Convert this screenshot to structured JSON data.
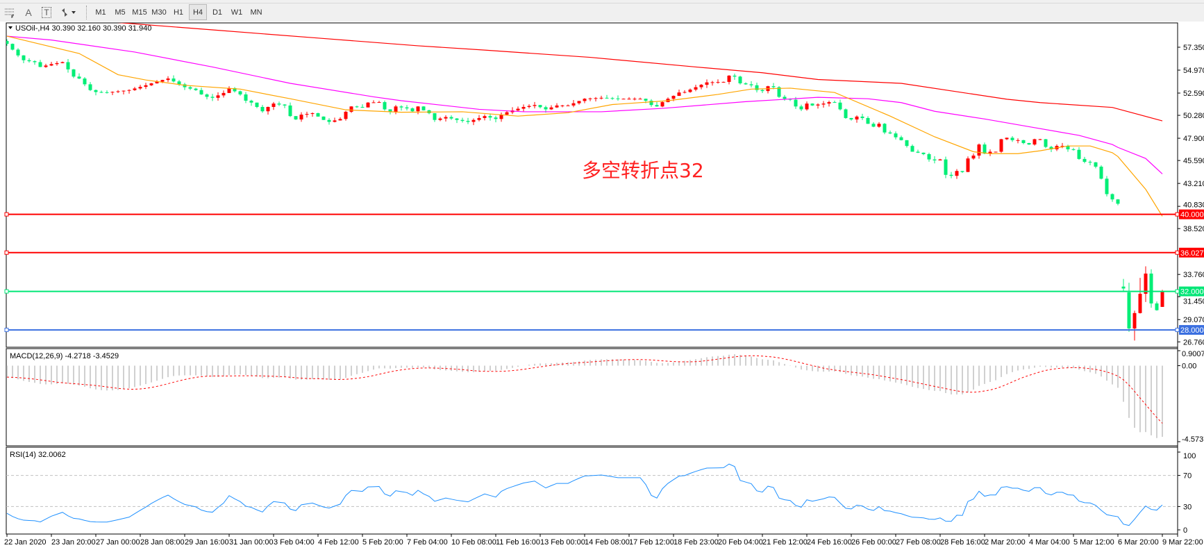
{
  "toolbar": {
    "drawing_tools": [
      {
        "icon": "fibonacci-icon"
      },
      {
        "icon": "text-icon",
        "label": "A"
      },
      {
        "icon": "text-label-icon",
        "label": "T"
      },
      {
        "icon": "arrows-icon"
      }
    ],
    "timeframes": [
      "M1",
      "M5",
      "M15",
      "M30",
      "H1",
      "H4",
      "D1",
      "W1",
      "MN"
    ],
    "active_timeframe": "H4"
  },
  "chart": {
    "header": "USOil-,H4  30.390 32.160 30.390 31.940",
    "symbol": "USOil-",
    "timeframe": "H4",
    "ohlc": {
      "open": 30.39,
      "high": 32.16,
      "low": 30.39,
      "close": 31.94
    },
    "annotation": "多空转折点32",
    "colors": {
      "bull": "#ff0000",
      "bear": "#00ee76",
      "ma_fast": "#ffa500",
      "ma_mid": "#ff00ff",
      "ma_slow": "#ff0000"
    },
    "price_axis": [
      "57.350",
      "54.970",
      "52.590",
      "50.280",
      "47.900",
      "45.590",
      "43.210",
      "40.830",
      "38.520",
      "33.760",
      "31.450",
      "29.070",
      "26.760"
    ],
    "price_range": [
      26.3,
      59.7
    ],
    "levels": [
      {
        "value": 40.0,
        "label": "40.000",
        "color": "#ff0000"
      },
      {
        "value": 36.027,
        "label": "36.027",
        "color": "#ff0000"
      },
      {
        "value": 32.0,
        "label": "32.000",
        "color": "#00e676"
      },
      {
        "value": 28.0,
        "label": "28.000",
        "color": "#3a6fe0"
      }
    ],
    "close_path": [
      [
        0,
        57.7
      ],
      [
        2,
        56.5
      ],
      [
        3,
        56.0
      ],
      [
        5,
        55.8
      ],
      [
        6,
        55.3
      ],
      [
        8,
        55.6
      ],
      [
        10,
        55.8
      ],
      [
        12,
        54.3
      ],
      [
        13,
        54.1
      ],
      [
        15,
        52.9
      ],
      [
        16,
        52.7
      ],
      [
        18,
        52.65
      ],
      [
        22,
        52.9
      ],
      [
        25,
        53.4
      ],
      [
        26,
        53.6
      ],
      [
        28,
        53.95
      ],
      [
        29,
        54.1
      ],
      [
        31,
        53.5
      ],
      [
        32,
        53.2
      ],
      [
        34,
        52.9
      ],
      [
        35,
        52.45
      ],
      [
        36,
        52.2
      ],
      [
        37,
        52.1
      ],
      [
        39,
        52.6
      ],
      [
        40,
        53.1
      ],
      [
        42,
        52.45
      ],
      [
        43,
        51.8
      ],
      [
        44,
        51.6
      ],
      [
        46,
        50.7
      ],
      [
        47,
        51.15
      ],
      [
        48,
        51.5
      ],
      [
        50,
        51.3
      ],
      [
        51,
        50.2
      ],
      [
        52,
        49.85
      ],
      [
        53,
        50.35
      ],
      [
        55,
        50.5
      ],
      [
        57,
        49.8
      ],
      [
        58,
        49.6
      ],
      [
        60,
        49.9
      ],
      [
        61,
        50.65
      ],
      [
        62,
        51.2
      ],
      [
        64,
        51.1
      ],
      [
        65,
        51.6
      ],
      [
        67,
        51.65
      ],
      [
        68,
        50.9
      ],
      [
        69,
        50.65
      ],
      [
        70,
        51.2
      ],
      [
        72,
        51.0
      ],
      [
        73,
        50.7
      ],
      [
        74,
        51.2
      ],
      [
        75,
        50.8
      ],
      [
        76,
        50.5
      ],
      [
        77,
        49.8
      ],
      [
        79,
        50.1
      ],
      [
        81,
        49.8
      ],
      [
        83,
        49.6
      ],
      [
        85,
        50.0
      ],
      [
        86,
        50.2
      ],
      [
        88,
        49.9
      ],
      [
        89,
        50.35
      ],
      [
        90,
        50.6
      ],
      [
        93,
        51.15
      ],
      [
        95,
        51.35
      ],
      [
        97,
        50.9
      ],
      [
        99,
        51.3
      ],
      [
        101,
        51.3
      ],
      [
        104,
        52.0
      ],
      [
        107,
        52.1
      ],
      [
        110,
        52.0
      ],
      [
        114,
        52.0
      ],
      [
        115,
        51.8
      ],
      [
        116,
        51.35
      ],
      [
        117,
        51.2
      ],
      [
        118,
        51.65
      ],
      [
        119,
        52.0
      ],
      [
        120,
        52.3
      ],
      [
        121,
        52.65
      ],
      [
        122,
        52.7
      ],
      [
        123,
        52.95
      ],
      [
        124,
        53.2
      ],
      [
        125,
        53.45
      ],
      [
        126,
        53.7
      ],
      [
        129,
        53.75
      ],
      [
        130,
        54.4
      ],
      [
        131,
        54.3
      ],
      [
        132,
        53.6
      ],
      [
        134,
        53.4
      ],
      [
        135,
        52.9
      ],
      [
        136,
        52.8
      ],
      [
        137,
        53.3
      ],
      [
        138,
        53.2
      ],
      [
        139,
        52.2
      ],
      [
        140,
        52.0
      ],
      [
        141,
        51.9
      ],
      [
        142,
        51.2
      ],
      [
        143,
        50.9
      ],
      [
        144,
        51.5
      ],
      [
        145,
        51.3
      ],
      [
        146,
        51.4
      ],
      [
        147,
        51.5
      ],
      [
        148,
        51.65
      ],
      [
        149,
        51.6
      ],
      [
        150,
        50.9
      ],
      [
        151,
        50.0
      ],
      [
        152,
        49.85
      ],
      [
        153,
        50.15
      ],
      [
        154,
        50.0
      ],
      [
        155,
        49.4
      ],
      [
        156,
        49.1
      ],
      [
        157,
        49.4
      ],
      [
        158,
        48.5
      ],
      [
        159,
        48.4
      ],
      [
        160,
        48.0
      ],
      [
        161,
        47.7
      ],
      [
        162,
        47.1
      ],
      [
        163,
        46.5
      ],
      [
        164,
        46.4
      ],
      [
        165,
        46.25
      ],
      [
        166,
        45.7
      ],
      [
        167,
        45.6
      ],
      [
        168,
        45.7
      ],
      [
        169,
        44.1
      ],
      [
        170,
        44.0
      ],
      [
        171,
        44.5
      ],
      [
        172,
        44.4
      ],
      [
        173,
        45.8
      ],
      [
        174,
        46.1
      ],
      [
        175,
        47.25
      ],
      [
        176,
        46.3
      ],
      [
        177,
        46.5
      ],
      [
        178,
        46.5
      ],
      [
        179,
        47.8
      ],
      [
        180,
        47.95
      ],
      [
        181,
        47.7
      ],
      [
        182,
        47.7
      ],
      [
        183,
        47.4
      ],
      [
        184,
        47.25
      ],
      [
        185,
        47.8
      ],
      [
        186,
        47.8
      ],
      [
        187,
        47.0
      ],
      [
        188,
        46.75
      ],
      [
        189,
        47.1
      ],
      [
        190,
        47.1
      ],
      [
        191,
        46.75
      ],
      [
        192,
        46.7
      ],
      [
        193,
        45.75
      ],
      [
        194,
        45.45
      ],
      [
        195,
        45.4
      ],
      [
        196,
        44.95
      ],
      [
        197,
        43.7
      ],
      [
        198,
        42.1
      ],
      [
        199,
        41.55
      ],
      [
        200,
        41.1
      ]
    ],
    "last_bars": [
      {
        "o": 32.5,
        "h": 33.3,
        "l": 32.0,
        "c": 32.3
      },
      {
        "o": 31.9,
        "h": 32.9,
        "l": 27.8,
        "c": 28.15
      },
      {
        "o": 28.15,
        "h": 30.0,
        "l": 26.9,
        "c": 29.75
      },
      {
        "o": 29.75,
        "h": 33.4,
        "l": 29.7,
        "c": 31.75
      },
      {
        "o": 31.75,
        "h": 34.6,
        "l": 30.9,
        "c": 33.85
      },
      {
        "o": 33.85,
        "h": 34.3,
        "l": 30.3,
        "c": 30.75
      },
      {
        "o": 30.75,
        "h": 30.95,
        "l": 30.0,
        "c": 30.05
      },
      {
        "o": 30.39,
        "h": 32.16,
        "l": 30.39,
        "c": 31.94
      }
    ],
    "ma_fast": [
      [
        0,
        58.5
      ],
      [
        13,
        56.7
      ],
      [
        20,
        54.5
      ],
      [
        25,
        53.95
      ],
      [
        32,
        53.4
      ],
      [
        42,
        53.0
      ],
      [
        51,
        52.0
      ],
      [
        61,
        50.85
      ],
      [
        71,
        50.6
      ],
      [
        82,
        50.65
      ],
      [
        92,
        50.2
      ],
      [
        101,
        50.55
      ],
      [
        109,
        51.4
      ],
      [
        119,
        51.8
      ],
      [
        128,
        52.45
      ],
      [
        134,
        53.0
      ],
      [
        141,
        53.1
      ],
      [
        149,
        52.65
      ],
      [
        159,
        50.2
      ],
      [
        167,
        48.05
      ],
      [
        174,
        46.5
      ],
      [
        177,
        46.3
      ],
      [
        182,
        46.3
      ],
      [
        186,
        46.6
      ],
      [
        191,
        47.1
      ],
      [
        195,
        47.1
      ],
      [
        199,
        46.4
      ],
      [
        200,
        46.0
      ],
      [
        205,
        42.6
      ],
      [
        208,
        39.8
      ]
    ],
    "ma_mid": [
      [
        0,
        58.5
      ],
      [
        8,
        58.1
      ],
      [
        23,
        56.85
      ],
      [
        37,
        55.3
      ],
      [
        51,
        53.6
      ],
      [
        66,
        52.2
      ],
      [
        71,
        51.8
      ],
      [
        85,
        50.9
      ],
      [
        93,
        50.65
      ],
      [
        107,
        50.65
      ],
      [
        118,
        51.0
      ],
      [
        133,
        51.7
      ],
      [
        146,
        52.15
      ],
      [
        155,
        52.0
      ],
      [
        161,
        51.6
      ],
      [
        167,
        50.7
      ],
      [
        176,
        49.9
      ],
      [
        184,
        49.1
      ],
      [
        193,
        48.2
      ],
      [
        199,
        47.25
      ],
      [
        200,
        46.95
      ],
      [
        205,
        45.8
      ],
      [
        208,
        44.2
      ]
    ],
    "ma_slow": [
      [
        18,
        60.0
      ],
      [
        37,
        59.15
      ],
      [
        56,
        58.3
      ],
      [
        74,
        57.5
      ],
      [
        86,
        57.05
      ],
      [
        105,
        56.3
      ],
      [
        124,
        55.3
      ],
      [
        136,
        54.7
      ],
      [
        146,
        54.0
      ],
      [
        161,
        53.6
      ],
      [
        180,
        51.95
      ],
      [
        186,
        51.6
      ],
      [
        199,
        51.1
      ],
      [
        208,
        49.7
      ]
    ]
  },
  "macd": {
    "header": "MACD(12,26,9) -4.2718 -3.4529",
    "axis_max": "0.9007",
    "axis_zero": "0.00",
    "axis_min": "-4.5737",
    "range": [
      -4.5737,
      0.9007
    ],
    "main": -4.2718,
    "signal": -3.4529,
    "colors": {
      "histogram": "#c0c0c0",
      "signal": "#ff0000"
    }
  },
  "rsi": {
    "header": "RSI(14) 32.0062",
    "value": 32.0062,
    "levels": [
      "100",
      "70",
      "30",
      "0"
    ],
    "color": "#1e90ff"
  },
  "time_axis": [
    "22 Jan 2020",
    "23 Jan 20:00",
    "27 Jan 00:00",
    "28 Jan 08:00",
    "29 Jan 16:00",
    "31 Jan 00:00",
    "3 Feb 04:00",
    "4 Feb 12:00",
    "5 Feb 20:00",
    "7 Feb 04:00",
    "10 Feb 08:00",
    "11 Feb 16:00",
    "13 Feb 00:00",
    "14 Feb 08:00",
    "17 Feb 12:00",
    "18 Feb 23:00",
    "20 Feb 04:00",
    "21 Feb 12:00",
    "24 Feb 16:00",
    "26 Feb 00:00",
    "27 Feb 08:00",
    "28 Feb 16:00",
    "2 Mar 20:00",
    "4 Mar 04:00",
    "5 Mar 12:00",
    "6 Mar 20:00",
    "9 Mar 22:00"
  ]
}
